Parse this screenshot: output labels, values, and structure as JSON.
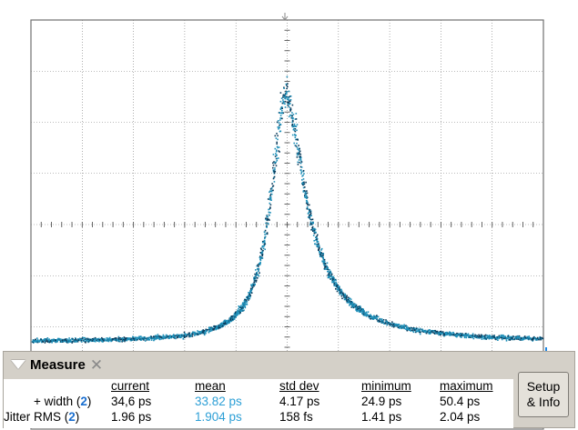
{
  "scope": {
    "trace_color": "#1e8fb8",
    "trace_dark": "#0a3a5a",
    "grid_color": "#7a7a7a",
    "marker_color": "#1e88e5"
  },
  "measure": {
    "title": "Measure",
    "close_glyph": "✕",
    "headers": [
      "current",
      "mean",
      "std dev",
      "minimum",
      "maximum"
    ],
    "rows": [
      {
        "name": "+ width (",
        "channel": "2",
        "suffix": ")",
        "current": "34,6 ps",
        "mean": "33.82 ps",
        "std_dev": "4.17 ps",
        "minimum": "24.9 ps",
        "maximum": "50.4 ps"
      },
      {
        "name": "Jitter RMS (",
        "channel": "2",
        "suffix": ")",
        "current": "1.96 ps",
        "mean": "1.904 ps",
        "std_dev": "158 fs",
        "minimum": "1.41 ps",
        "maximum": "2.04 ps"
      }
    ],
    "setup_line1": "Setup",
    "setup_line2": "& Info"
  }
}
